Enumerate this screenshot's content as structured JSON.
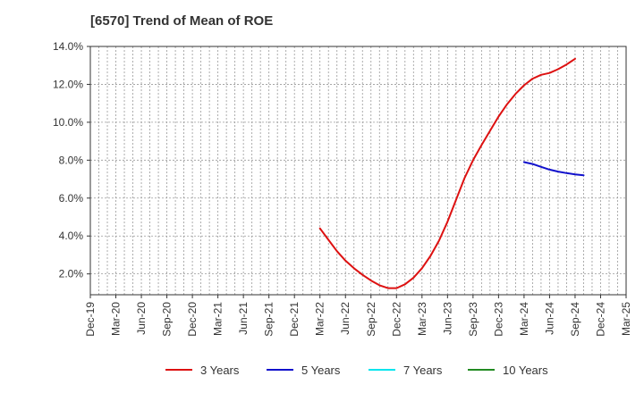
{
  "chart_data": {
    "type": "line",
    "title": "[6570]  Trend of Mean of ROE",
    "xlabel": "",
    "ylabel": "",
    "x_ticks": [
      "Dec-19",
      "Mar-20",
      "Jun-20",
      "Sep-20",
      "Dec-20",
      "Mar-21",
      "Jun-21",
      "Sep-21",
      "Dec-21",
      "Mar-22",
      "Jun-22",
      "Sep-22",
      "Dec-22",
      "Mar-23",
      "Jun-23",
      "Sep-23",
      "Dec-23",
      "Mar-24",
      "Jun-24",
      "Sep-24",
      "Dec-24",
      "Mar-25"
    ],
    "y_ticks": [
      "2.0%",
      "4.0%",
      "6.0%",
      "8.0%",
      "10.0%",
      "12.0%",
      "14.0%"
    ],
    "ylim": [
      0.9,
      14.0
    ],
    "grid": true,
    "legend_position": "bottom",
    "series": [
      {
        "name": "3 Years",
        "color": "#dd1111",
        "x": [
          "Mar-22",
          "Apr-22",
          "May-22",
          "Jun-22",
          "Jul-22",
          "Aug-22",
          "Sep-22",
          "Oct-22",
          "Nov-22",
          "Dec-22",
          "Jan-23",
          "Feb-23",
          "Mar-23",
          "Apr-23",
          "May-23",
          "Jun-23",
          "Jul-23",
          "Aug-23",
          "Sep-23",
          "Oct-23",
          "Nov-23",
          "Dec-23",
          "Jan-24",
          "Feb-24",
          "Mar-24",
          "Apr-24",
          "May-24",
          "Jun-24",
          "Jul-24",
          "Aug-24",
          "Sep-24",
          "Oct-24",
          "Nov-24",
          "Dec-24"
        ],
        "values": [
          4.4,
          3.8,
          3.2,
          2.7,
          2.3,
          1.95,
          1.65,
          1.4,
          1.25,
          1.25,
          1.45,
          1.8,
          2.3,
          2.95,
          3.75,
          4.75,
          5.9,
          7.05,
          8.0,
          8.8,
          9.55,
          10.3,
          10.95,
          11.5,
          11.95,
          12.3,
          12.5,
          12.6,
          12.8,
          13.05,
          13.35,
          null,
          null,
          null
        ]
      },
      {
        "name": "5 Years",
        "color": "#1111cc",
        "x": [
          "Mar-24",
          "Apr-24",
          "May-24",
          "Jun-24",
          "Jul-24",
          "Aug-24",
          "Sep-24",
          "Oct-24",
          "Nov-24",
          "Dec-24"
        ],
        "values": [
          7.9,
          7.8,
          7.65,
          7.5,
          7.4,
          7.32,
          7.25,
          7.2,
          null,
          null
        ]
      },
      {
        "name": "7 Years",
        "color": "#00e5ee",
        "x": [],
        "values": []
      },
      {
        "name": "10 Years",
        "color": "#228b22",
        "x": [],
        "values": []
      }
    ]
  }
}
